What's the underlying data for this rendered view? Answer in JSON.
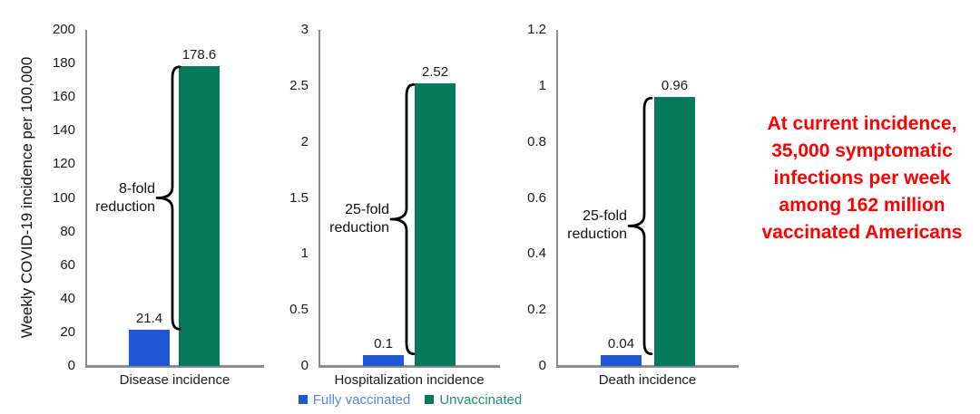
{
  "y_axis_label": "Weekly COVID-19 incidence per 100,000",
  "colors": {
    "fully_vaccinated_bar": "#2057d3",
    "unvaccinated_bar": "#067a58",
    "legend_blue_text": "#5b86e0",
    "legend_green_text": "#1f9170",
    "axis_gray": "#8c8c8c",
    "brace_black": "#000000",
    "annotation_red": "#ff0000"
  },
  "legend": {
    "items": [
      {
        "label": "Fully vaccinated",
        "swatch_color": "#2057d3",
        "text_color": "#5b86e0"
      },
      {
        "label": "Unvaccinated",
        "swatch_color": "#067a58",
        "text_color": "#1f9170"
      }
    ]
  },
  "annotation": {
    "text": "At current incidence,\n35,000 symptomatic\ninfections per week\namong 162 million\nvaccinated Americans",
    "color": "#ff0000"
  },
  "chart_data": [
    {
      "type": "bar",
      "categories": [
        "Fully vaccinated",
        "Unvaccinated"
      ],
      "values": [
        21.4,
        178.6
      ],
      "value_labels": [
        "21.4",
        "178.6"
      ],
      "xlabel": "Disease incidence",
      "ylabel": "Weekly COVID-19 incidence per 100,000",
      "ylim": [
        0,
        200
      ],
      "yticks": [
        "200",
        "180",
        "160",
        "140",
        "120",
        "100",
        "80",
        "60",
        "40",
        "20",
        "0"
      ],
      "reduction_label": "8-fold\nreduction",
      "bar_colors": [
        "#2057d3",
        "#067a58"
      ],
      "grid": false,
      "legend_position": "none"
    },
    {
      "type": "bar",
      "categories": [
        "Fully vaccinated",
        "Unvaccinated"
      ],
      "values": [
        0.1,
        2.52
      ],
      "value_labels": [
        "0.1",
        "2.52"
      ],
      "xlabel": "Hospitalization incidence",
      "ylabel": "",
      "ylim": [
        0,
        3
      ],
      "yticks": [
        "3",
        "2.5",
        "2",
        "1.5",
        "1",
        "0.5",
        "0"
      ],
      "reduction_label": "25-fold\nreduction",
      "bar_colors": [
        "#2057d3",
        "#067a58"
      ],
      "grid": false,
      "legend_position": "bottom"
    },
    {
      "type": "bar",
      "categories": [
        "Fully vaccinated",
        "Unvaccinated"
      ],
      "values": [
        0.04,
        0.96
      ],
      "value_labels": [
        "0.04",
        "0.96"
      ],
      "xlabel": "Death incidence",
      "ylabel": "",
      "ylim": [
        0,
        1.2
      ],
      "yticks": [
        "1.2",
        "1",
        "0.8",
        "0.6",
        "0.4",
        "0.2",
        "0"
      ],
      "reduction_label": "25-fold\nreduction",
      "bar_colors": [
        "#2057d3",
        "#067a58"
      ],
      "grid": false,
      "legend_position": "none"
    }
  ]
}
